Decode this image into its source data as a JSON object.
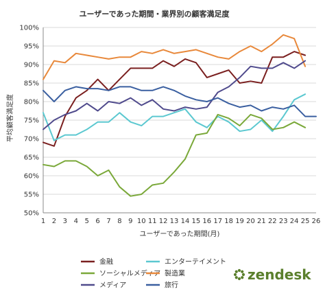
{
  "brand": {
    "logo_text": "zendesk",
    "logo_color": "#5a7f2c"
  },
  "chart_data": {
    "type": "line",
    "title": "ユーザーであった期間・業界別の顧客満足度",
    "xlabel": "ユーザーであった期間(月)",
    "ylabel": "平均顧客満足度",
    "x": [
      1,
      2,
      3,
      4,
      5,
      6,
      7,
      8,
      9,
      10,
      11,
      12,
      13,
      14,
      15,
      16,
      17,
      18,
      19,
      20,
      21,
      22,
      23,
      24,
      25,
      26
    ],
    "ylim": [
      50,
      100
    ],
    "xlim": [
      1,
      26
    ],
    "yticks": [
      "50%",
      "55%",
      "60%",
      "65%",
      "70%",
      "75%",
      "80%",
      "85%",
      "90%",
      "95%",
      "100%"
    ],
    "grid": true,
    "legend_position": "bottom",
    "series": [
      {
        "name": "金融",
        "color": "#7a1f1f",
        "values": [
          69,
          68,
          76,
          81,
          83,
          86,
          83,
          86,
          89,
          89,
          89,
          91,
          89.5,
          91.5,
          90.5,
          86.5,
          87.5,
          88.5,
          85,
          85.5,
          85,
          92,
          92,
          93.5,
          92.5,
          null
        ]
      },
      {
        "name": "エンターテイメント",
        "color": "#5bc8d0",
        "values": [
          77,
          69.5,
          71,
          71,
          72.5,
          74.5,
          74.5,
          77,
          74.5,
          73.5,
          76,
          76,
          77,
          78,
          74.5,
          73,
          76,
          74.5,
          72,
          72.5,
          75,
          72,
          76,
          80.5,
          82,
          null
        ]
      },
      {
        "name": "ソーシャルメディア",
        "color": "#7aa839",
        "values": [
          63,
          62.5,
          64,
          64,
          62.5,
          60,
          61.5,
          57,
          54.5,
          55,
          57.5,
          58,
          61,
          64.5,
          71,
          71.5,
          76.5,
          75.5,
          73.5,
          76.5,
          75.5,
          72.5,
          73,
          74.5,
          73,
          null
        ]
      },
      {
        "name": "製造業",
        "color": "#e8883a",
        "values": [
          86,
          91,
          90.5,
          93,
          92.5,
          92,
          91.5,
          92,
          92,
          93.5,
          93,
          94,
          93,
          93.5,
          94,
          93,
          92,
          91.5,
          93.5,
          95,
          93.5,
          95.5,
          98,
          97,
          89.5,
          null
        ]
      },
      {
        "name": "メディア",
        "color": "#4f4a8c",
        "values": [
          72.5,
          75,
          76.5,
          77.5,
          79.5,
          77.5,
          80,
          79.5,
          81,
          79,
          80.5,
          78,
          77.5,
          78.5,
          78,
          78.5,
          82.5,
          84,
          86.5,
          89.5,
          89,
          89,
          90.5,
          89,
          91,
          null
        ]
      },
      {
        "name": "旅行",
        "color": "#3a5fa0",
        "values": [
          83,
          80,
          83,
          84,
          83.5,
          83.5,
          83,
          84,
          84,
          83,
          83,
          84,
          83,
          81.5,
          80.5,
          80,
          81,
          79.5,
          78.5,
          79,
          77.5,
          78.5,
          78,
          79,
          76,
          76
        ]
      }
    ]
  }
}
